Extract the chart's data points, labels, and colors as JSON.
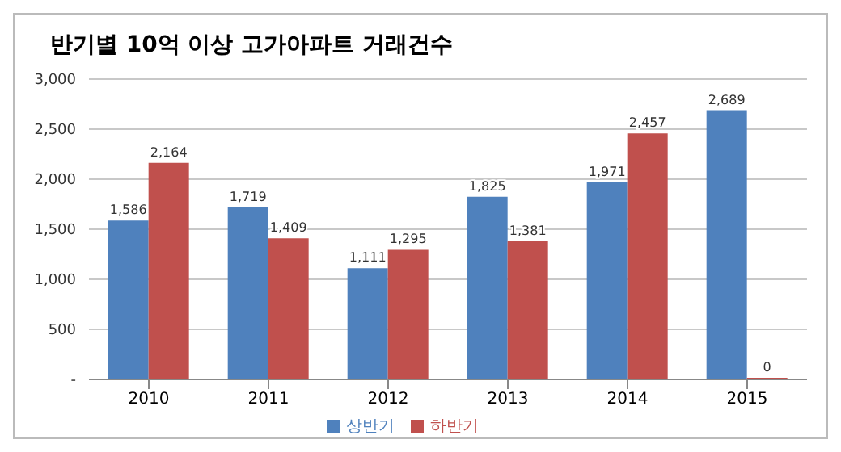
{
  "chart_data": {
    "type": "bar",
    "title": "반기별 10억 이상 고가아파트 거래건수",
    "categories": [
      "2010",
      "2011",
      "2012",
      "2013",
      "2014",
      "2015"
    ],
    "series": [
      {
        "name": "상반기",
        "color": "#4f81bd",
        "values": [
          1586,
          1719,
          1111,
          1825,
          1971,
          2689
        ],
        "value_labels": [
          "1,586",
          "1,719",
          "1,111",
          "1,825",
          "1,971",
          "2,689"
        ]
      },
      {
        "name": "하반기",
        "color": "#c0504d",
        "values": [
          2164,
          1409,
          1295,
          1381,
          2457,
          0
        ],
        "value_labels": [
          "2,164",
          "1,409",
          "1,295",
          "1,381",
          "2,457",
          "0"
        ]
      }
    ],
    "ylim": [
      0,
      3000
    ],
    "yticks": [
      {
        "value": 0,
        "label": "-"
      },
      {
        "value": 500,
        "label": "500"
      },
      {
        "value": 1000,
        "label": "1,000"
      },
      {
        "value": 1500,
        "label": "1,500"
      },
      {
        "value": 2000,
        "label": "2,000"
      },
      {
        "value": 2500,
        "label": "2,500"
      },
      {
        "value": 3000,
        "label": "3,000"
      }
    ],
    "grid": "y",
    "legend": "bottom"
  }
}
